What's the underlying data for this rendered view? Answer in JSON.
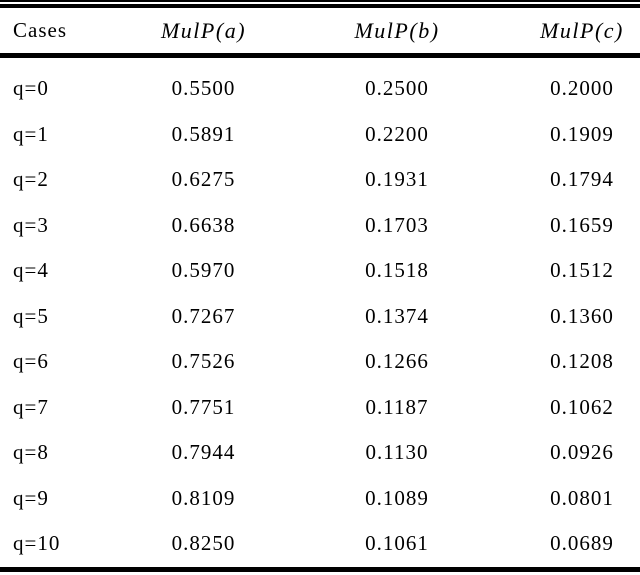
{
  "colors": {
    "background": "#ffffff",
    "text": "#000000",
    "rule": "#000000"
  },
  "table": {
    "columns": [
      "Cases",
      "MulP(a)",
      "MulP(b)",
      "MulP(c)"
    ],
    "rows": [
      {
        "case": "q=0",
        "a": "0.5500",
        "b": "0.2500",
        "c": "0.2000"
      },
      {
        "case": "q=1",
        "a": "0.5891",
        "b": "0.2200",
        "c": "0.1909"
      },
      {
        "case": "q=2",
        "a": "0.6275",
        "b": "0.1931",
        "c": "0.1794"
      },
      {
        "case": "q=3",
        "a": "0.6638",
        "b": "0.1703",
        "c": "0.1659"
      },
      {
        "case": "q=4",
        "a": "0.5970",
        "b": "0.1518",
        "c": "0.1512"
      },
      {
        "case": "q=5",
        "a": "0.7267",
        "b": "0.1374",
        "c": "0.1360"
      },
      {
        "case": "q=6",
        "a": "0.7526",
        "b": "0.1266",
        "c": "0.1208"
      },
      {
        "case": "q=7",
        "a": "0.7751",
        "b": "0.1187",
        "c": "0.1062"
      },
      {
        "case": "q=8",
        "a": "0.7944",
        "b": "0.1130",
        "c": "0.0926"
      },
      {
        "case": "q=9",
        "a": "0.8109",
        "b": "0.1089",
        "c": "0.0801"
      },
      {
        "case": "q=10",
        "a": "0.8250",
        "b": "0.1061",
        "c": "0.0689"
      }
    ]
  },
  "chart_data": {
    "type": "table",
    "title": "",
    "categories": [
      "q=0",
      "q=1",
      "q=2",
      "q=3",
      "q=4",
      "q=5",
      "q=6",
      "q=7",
      "q=8",
      "q=9",
      "q=10"
    ],
    "series": [
      {
        "name": "MulP(a)",
        "values": [
          0.55,
          0.5891,
          0.6275,
          0.6638,
          0.597,
          0.7267,
          0.7526,
          0.7751,
          0.7944,
          0.8109,
          0.825
        ]
      },
      {
        "name": "MulP(b)",
        "values": [
          0.25,
          0.22,
          0.1931,
          0.1703,
          0.1518,
          0.1374,
          0.1266,
          0.1187,
          0.113,
          0.1089,
          0.1061
        ]
      },
      {
        "name": "MulP(c)",
        "values": [
          0.2,
          0.1909,
          0.1794,
          0.1659,
          0.1512,
          0.136,
          0.1208,
          0.1062,
          0.0926,
          0.0801,
          0.0689
        ]
      }
    ]
  }
}
